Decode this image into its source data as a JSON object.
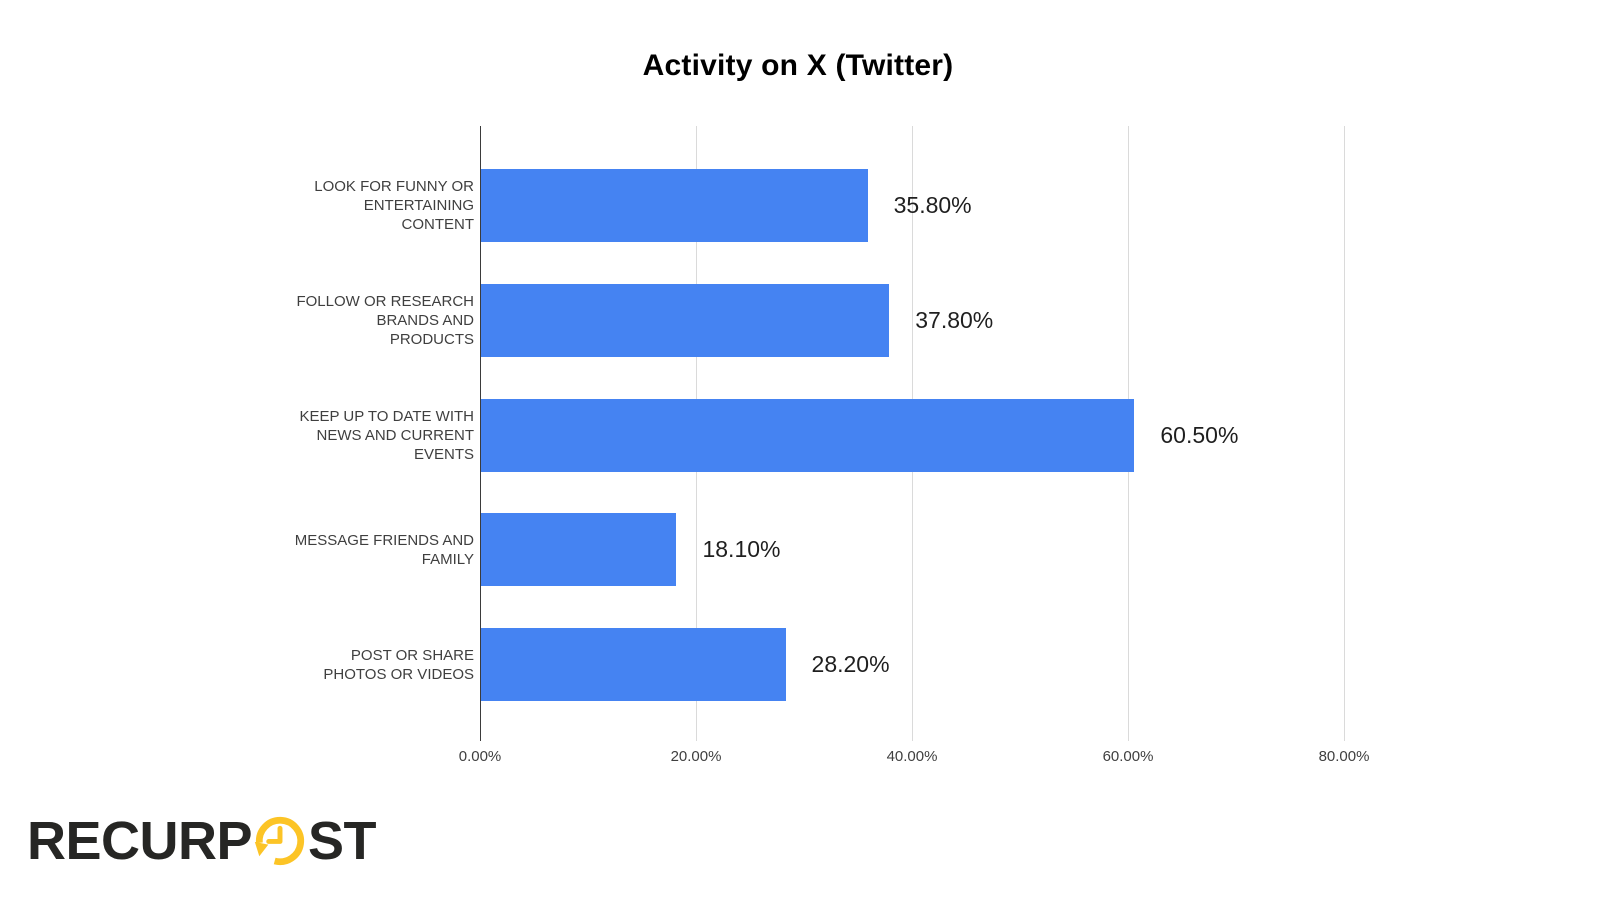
{
  "chart_data": {
    "type": "bar",
    "orientation": "horizontal",
    "title": "Activity on X (Twitter)",
    "categories": [
      "LOOK FOR FUNNY OR ENTERTAINING CONTENT",
      "FOLLOW OR RESEARCH BRANDS AND PRODUCTS",
      "KEEP UP TO DATE WITH NEWS AND CURRENT EVENTS",
      "MESSAGE FRIENDS AND FAMILY",
      "POST OR SHARE PHOTOS OR VIDEOS"
    ],
    "values": [
      35.8,
      37.8,
      60.5,
      18.1,
      28.2
    ],
    "value_labels": [
      "35.80%",
      "37.80%",
      "60.50%",
      "18.10%",
      "28.20%"
    ],
    "x_ticks": [
      "0.00%",
      "20.00%",
      "40.00%",
      "60.00%",
      "80.00%"
    ],
    "x_tick_values": [
      0,
      20,
      40,
      60,
      80
    ],
    "xlim": [
      0,
      100
    ],
    "grid": true,
    "legend": false,
    "bar_color": "#4583F2",
    "gridline_color": "#dadada",
    "axis_color": "#3b3b3b",
    "label_color": "#3f3f3f",
    "value_label_color": "#1f1f1f"
  },
  "branding": {
    "logo_pre": "RECURP",
    "logo_post": "ST",
    "logo_color": "#262624",
    "clock_icon": "clock-refresh-icon",
    "clock_color": "#FCC426"
  }
}
